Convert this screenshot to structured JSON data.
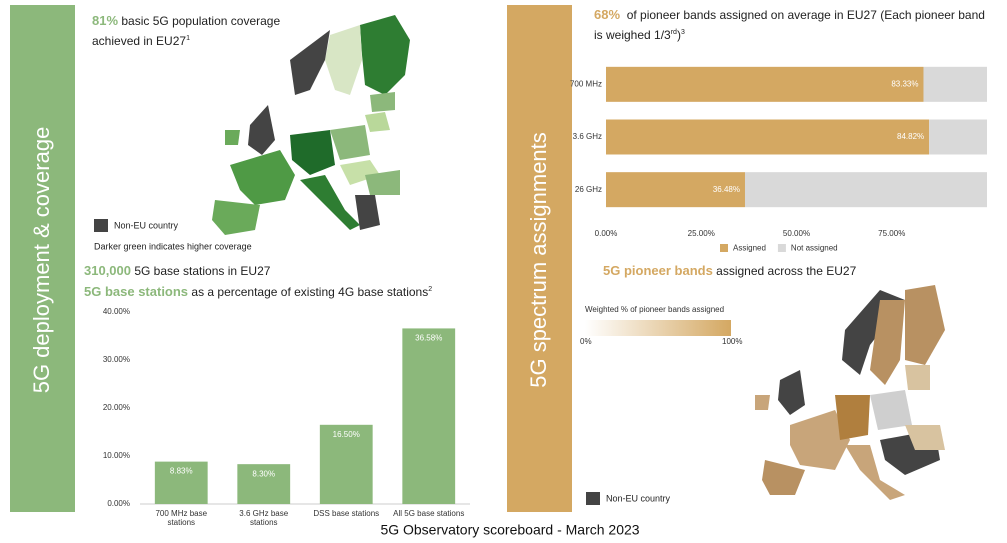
{
  "left_panel": {
    "title": "5G deployment & coverage",
    "coverage": {
      "highlight": "81%",
      "text": "basic 5G population coverage achieved in EU27",
      "note": "1"
    },
    "map": {
      "legend": "Non-EU country",
      "caption": "Darker green indicates higher coverage"
    },
    "stations": {
      "highlight": "310,000",
      "text": "5G base stations in EU27"
    },
    "share": {
      "highlight": "5G base stations",
      "text": "as a percentage of existing 4G base stations",
      "note": "2"
    }
  },
  "right_panel": {
    "title": "5G spectrum assignments",
    "average": {
      "highlight": "68%",
      "text": "of pioneer bands assigned on average in EU27 (Each pioneer band is weighed 1/3",
      "sup": "rd",
      "close": ")",
      "note": "3"
    },
    "bands": {
      "highlight": "5G pioneer bands",
      "text": "assigned across the EU27"
    },
    "map": {
      "scale_title": "Weighted % of pioneer bands assigned",
      "scale_min": "0%",
      "scale_max": "100%",
      "legend": "Non-EU country"
    }
  },
  "footer": "5G Observatory scoreboard - March 2023",
  "chart_data": [
    {
      "type": "bar",
      "categories": [
        "700 MHz base stations",
        "3.6 GHz base stations",
        "DSS base stations",
        "All 5G base stations"
      ],
      "values": [
        8.83,
        8.3,
        16.5,
        36.58
      ],
      "value_labels": [
        "8.83%",
        "8.30%",
        "16.50%",
        "36.58%"
      ],
      "color": "#8cb87b",
      "ylim": [
        0,
        40
      ],
      "yticks": [
        {
          "value": 0,
          "label": "0.00%"
        },
        {
          "value": 10,
          "label": "10.00%"
        },
        {
          "value": 20,
          "label": "20.00%"
        },
        {
          "value": 30,
          "label": "30.00%"
        },
        {
          "value": 40,
          "label": "40.00%"
        }
      ],
      "grid": false
    },
    {
      "type": "stacked_barh",
      "categories": [
        "700 MHz",
        "3.6 GHz",
        "26 GHz"
      ],
      "series": [
        {
          "name": "Assigned",
          "color": "#d4a862",
          "values": [
            83.33,
            84.82,
            36.48
          ],
          "value_labels": [
            "83.33%",
            "84.82%",
            "36.48%"
          ]
        },
        {
          "name": "Not assigned",
          "color": "#d9d9d9",
          "values": [
            16.67,
            15.18,
            63.52
          ]
        }
      ],
      "xlim": [
        0,
        100
      ],
      "xticks": [
        {
          "value": 0,
          "label": "0.00%"
        },
        {
          "value": 25,
          "label": "25.00%"
        },
        {
          "value": 50,
          "label": "50.00%"
        },
        {
          "value": 75,
          "label": "75.00%"
        }
      ],
      "legend": "bottom"
    }
  ]
}
